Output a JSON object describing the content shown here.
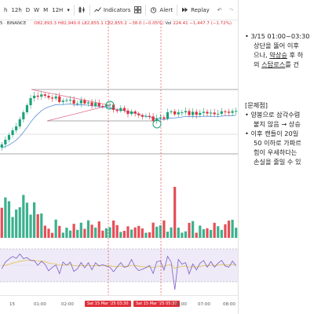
{
  "toolbar": {
    "timeframes": [
      "h",
      "12h",
      "D",
      "W",
      "M",
      "12H"
    ],
    "indicators_label": "Indicators",
    "alert_label": "Alert",
    "replay_label": "Replay"
  },
  "legend": {
    "symbol": "5 · BINANCE",
    "open": "82,893.3",
    "high": "82,940.0",
    "low": "82,855.1",
    "close": "82,855.2",
    "change": "−38.0 (−0.05%)",
    "volume_label": "Vol",
    "volume_value": "224.41",
    "volume_change": "−1,447.7 (−1.72%)"
  },
  "time_axis": {
    "labels": [
      "15",
      "01:00",
      "02:00",
      "04:00",
      "06:00",
      "07:00",
      "08:00"
    ],
    "badge_left": "Sat 15 Mar '25   03:30",
    "badge_right": "Sat 15 Mar '25   05:30"
  },
  "notes": {
    "item1_line1": "3/15 01:00~03:30",
    "item1_line2": "상단을 뚫어 이후",
    "item1_line3_pre": "으나, ",
    "item1_line3_u": "약상승",
    "item1_line3_post": " 후 하",
    "item1_line4_pre": "의 ",
    "item1_line4_u": "스탑로스",
    "item1_line4_post": "를 건",
    "problem_header": "[문제점]",
    "item2_line1": "양봉으로 삼각수렴",
    "item2_line2": "붙지 않음 → 상승",
    "item3_line1": "이후 캔들이 20일",
    "item3_line2": "50 이하로 가파르",
    "item3_line3": "힘이 우세하다는",
    "item3_line4": "손실을 줄일 수 있"
  },
  "colors": {
    "up": "#1aa37a",
    "down": "#e0303a",
    "ma": "#5b8fd9",
    "rsi": "#7a5cc8",
    "rsi_ma": "#e0c34a",
    "triangle": "#e26a8a",
    "marker": "#1aa37a"
  }
}
